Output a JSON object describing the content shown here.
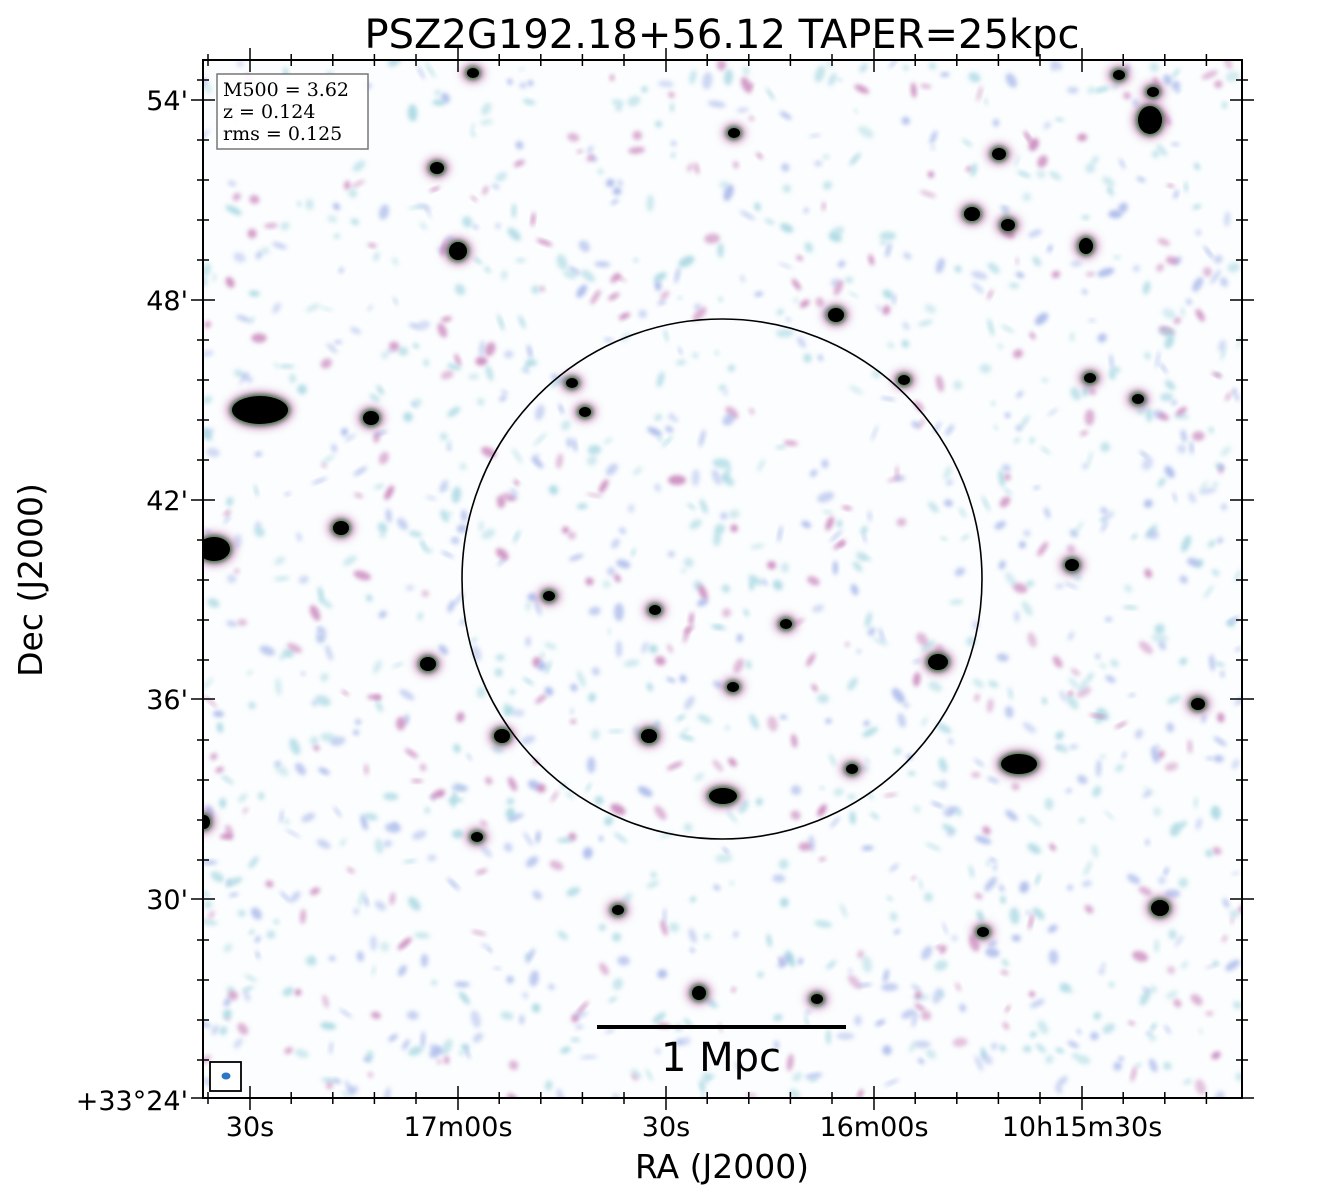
{
  "title": "PSZ2G192.18+56.12 TAPER=25kpc",
  "axes": {
    "xlabel": "RA (J2000)",
    "ylabel": "Dec (J2000)",
    "xticks": [
      "30s",
      "17m00s",
      "30s",
      "16m00s",
      "10h15m30s"
    ],
    "yticks": [
      "54'",
      "48'",
      "42'",
      "36'",
      "30'",
      "+33°24'"
    ]
  },
  "info_box": {
    "line1": "M500 = 3.62",
    "line2": "z = 0.124",
    "line3": "rms = 0.125"
  },
  "scale_bar": {
    "label": "1 Mpc"
  },
  "colors": {
    "frame": "#000000",
    "noise_light": "#a9d8e2",
    "noise_blue": "#a8b8ea",
    "noise_pink": "#c77fb8",
    "source_core": "#000000",
    "source_halo": "#2f6e34",
    "beam": "#2b78c4"
  }
}
